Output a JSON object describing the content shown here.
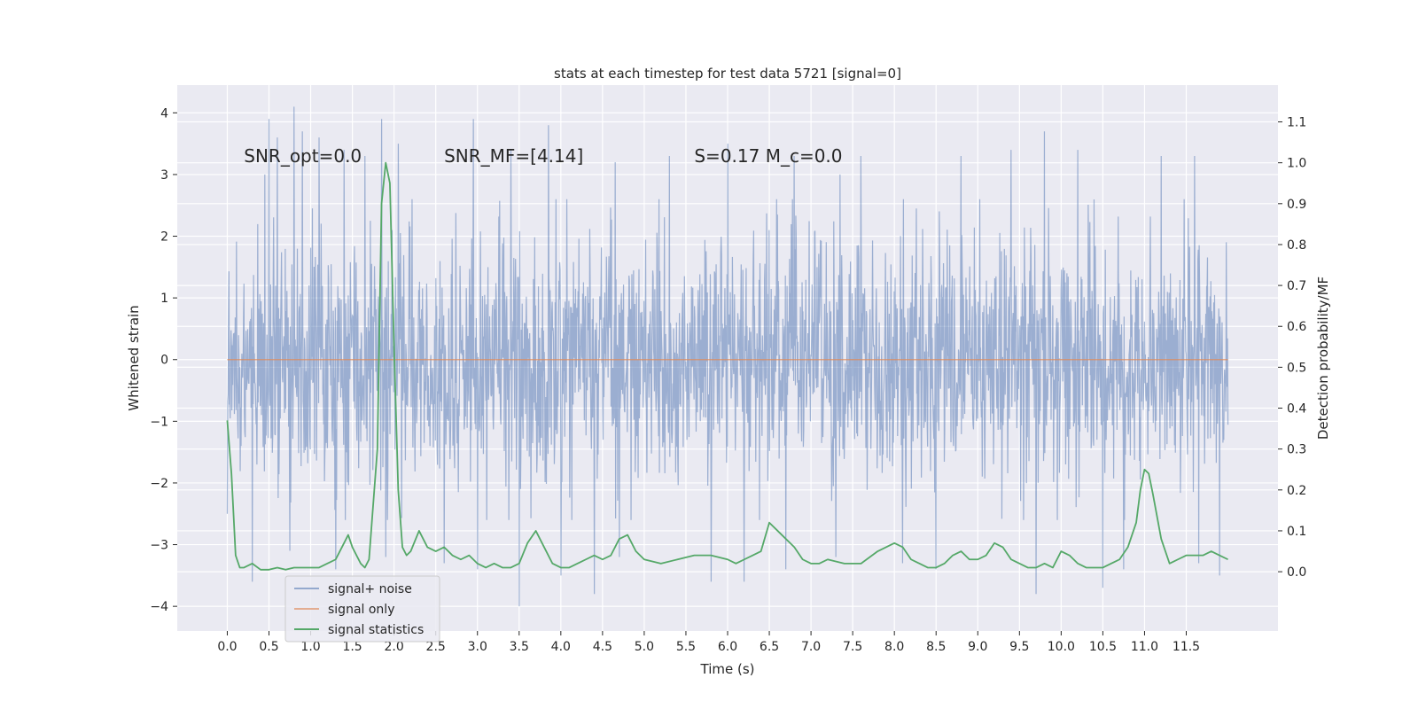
{
  "chart_data": {
    "type": "line",
    "title": "stats at each timestep for test data 5721 [signal=0]",
    "xlabel": "Time (s)",
    "ylabel": "Whitened strain",
    "y2label": "Detection probability/MF",
    "xlim": [
      -0.6,
      12.6
    ],
    "ylim": [
      -4.4,
      4.45
    ],
    "y2lim": [
      -0.145,
      1.19
    ],
    "xticks": [
      0.0,
      0.5,
      1.0,
      1.5,
      2.0,
      2.5,
      3.0,
      3.5,
      4.0,
      4.5,
      5.0,
      5.5,
      6.0,
      6.5,
      7.0,
      7.5,
      8.0,
      8.5,
      9.0,
      9.5,
      10.0,
      10.5,
      11.0,
      11.5
    ],
    "xtick_labels": [
      "0.0",
      "0.5",
      "1.0",
      "1.5",
      "2.0",
      "2.5",
      "3.0",
      "3.5",
      "4.0",
      "4.5",
      "5.0",
      "5.5",
      "6.0",
      "6.5",
      "7.0",
      "7.5",
      "8.0",
      "8.5",
      "9.0",
      "9.5",
      "10.0",
      "10.5",
      "11.0",
      "11.5"
    ],
    "yticks": [
      -4,
      -3,
      -2,
      -1,
      0,
      1,
      2,
      3,
      4
    ],
    "ytick_labels": [
      "−4",
      "−3",
      "−2",
      "−1",
      "0",
      "1",
      "2",
      "3",
      "4"
    ],
    "y2ticks": [
      0.0,
      0.1,
      0.2,
      0.3,
      0.4,
      0.5,
      0.6,
      0.7,
      0.8,
      0.9,
      1.0,
      1.1
    ],
    "y2tick_labels": [
      "0.0",
      "0.1",
      "0.2",
      "0.3",
      "0.4",
      "0.5",
      "0.6",
      "0.7",
      "0.8",
      "0.9",
      "1.0",
      "1.1"
    ],
    "grid": true,
    "legend_position": "lower-left",
    "annotations": [
      {
        "text": "SNR_opt=0.0",
        "x": 0.2,
        "y": 3.3
      },
      {
        "text": "SNR_MF=[4.14]",
        "x": 2.6,
        "y": 3.3
      },
      {
        "text": "S=0.17   M_c=0.0",
        "x": 5.6,
        "y": 3.3
      }
    ],
    "series": [
      {
        "name": "signal+ noise",
        "axis": "left",
        "color": "#4c72b0",
        "kind": "noise",
        "x_range": [
          0.0,
          12.0
        ],
        "peaks": [
          [
            0.0,
            1.6
          ],
          [
            0.0,
            -2.5
          ],
          [
            0.3,
            2.6
          ],
          [
            0.45,
            3.0
          ],
          [
            0.5,
            3.9
          ],
          [
            0.6,
            3.6
          ],
          [
            0.8,
            4.1
          ],
          [
            0.9,
            3.7
          ],
          [
            1.1,
            3.6
          ],
          [
            1.4,
            3.4
          ],
          [
            1.65,
            3.3
          ],
          [
            1.85,
            3.9
          ],
          [
            2.05,
            3.5
          ],
          [
            2.6,
            3.3
          ],
          [
            2.95,
            3.9
          ],
          [
            3.4,
            3.4
          ],
          [
            3.85,
            3.8
          ],
          [
            4.65,
            3.2
          ],
          [
            5.3,
            3.3
          ],
          [
            6.0,
            3.5
          ],
          [
            6.8,
            3.3
          ],
          [
            7.35,
            3.0
          ],
          [
            7.6,
            3.3
          ],
          [
            8.1,
            3.3
          ],
          [
            8.8,
            3.3
          ],
          [
            9.4,
            3.4
          ],
          [
            9.8,
            3.7
          ],
          [
            10.2,
            3.4
          ],
          [
            10.5,
            3.6
          ],
          [
            11.2,
            3.3
          ],
          [
            11.6,
            3.3
          ],
          [
            0.3,
            -3.6
          ],
          [
            0.75,
            -3.1
          ],
          [
            1.3,
            -3.4
          ],
          [
            1.9,
            -3.2
          ],
          [
            2.6,
            -3.3
          ],
          [
            3.0,
            -3.4
          ],
          [
            3.5,
            -4.0
          ],
          [
            4.0,
            -3.5
          ],
          [
            4.4,
            -3.8
          ],
          [
            4.7,
            -3.2
          ],
          [
            5.8,
            -3.6
          ],
          [
            6.2,
            -3.6
          ],
          [
            6.7,
            -3.4
          ],
          [
            7.3,
            -3.2
          ],
          [
            8.1,
            -3.3
          ],
          [
            8.5,
            -3.4
          ],
          [
            9.7,
            -3.8
          ],
          [
            10.5,
            -3.7
          ],
          [
            10.75,
            -3.4
          ],
          [
            11.9,
            -3.5
          ],
          [
            11.65,
            -3.3
          ]
        ]
      },
      {
        "name": "signal only",
        "axis": "left",
        "color": "#dd8452",
        "x": [
          0.0,
          12.0
        ],
        "y": [
          0.0,
          0.0
        ]
      },
      {
        "name": "signal statistics",
        "axis": "right",
        "color": "#55a868",
        "x": [
          0.0,
          0.05,
          0.1,
          0.15,
          0.2,
          0.3,
          0.4,
          0.5,
          0.6,
          0.7,
          0.8,
          0.9,
          1.0,
          1.1,
          1.2,
          1.3,
          1.4,
          1.45,
          1.5,
          1.6,
          1.65,
          1.7,
          1.8,
          1.85,
          1.9,
          1.95,
          2.0,
          2.05,
          2.1,
          2.15,
          2.2,
          2.3,
          2.4,
          2.5,
          2.6,
          2.7,
          2.8,
          2.9,
          3.0,
          3.1,
          3.2,
          3.3,
          3.4,
          3.5,
          3.6,
          3.7,
          3.8,
          3.9,
          4.0,
          4.1,
          4.2,
          4.3,
          4.4,
          4.5,
          4.6,
          4.7,
          4.8,
          4.9,
          5.0,
          5.2,
          5.4,
          5.6,
          5.8,
          6.0,
          6.1,
          6.2,
          6.3,
          6.4,
          6.5,
          6.6,
          6.7,
          6.8,
          6.9,
          7.0,
          7.1,
          7.2,
          7.4,
          7.6,
          7.8,
          7.9,
          8.0,
          8.1,
          8.2,
          8.3,
          8.4,
          8.5,
          8.6,
          8.7,
          8.8,
          8.9,
          9.0,
          9.1,
          9.2,
          9.3,
          9.4,
          9.5,
          9.6,
          9.7,
          9.8,
          9.9,
          10.0,
          10.1,
          10.2,
          10.3,
          10.4,
          10.5,
          10.6,
          10.7,
          10.8,
          10.9,
          10.95,
          11.0,
          11.05,
          11.1,
          11.2,
          11.3,
          11.4,
          11.5,
          11.6,
          11.7,
          11.8,
          11.9,
          12.0
        ],
        "y": [
          0.37,
          0.24,
          0.04,
          0.01,
          0.01,
          0.02,
          0.005,
          0.005,
          0.01,
          0.005,
          0.01,
          0.01,
          0.01,
          0.01,
          0.02,
          0.03,
          0.07,
          0.09,
          0.06,
          0.02,
          0.01,
          0.03,
          0.3,
          0.9,
          1.0,
          0.95,
          0.55,
          0.2,
          0.06,
          0.04,
          0.05,
          0.1,
          0.06,
          0.05,
          0.06,
          0.04,
          0.03,
          0.04,
          0.02,
          0.01,
          0.02,
          0.01,
          0.01,
          0.02,
          0.07,
          0.1,
          0.06,
          0.02,
          0.01,
          0.01,
          0.02,
          0.03,
          0.04,
          0.03,
          0.04,
          0.08,
          0.09,
          0.05,
          0.03,
          0.02,
          0.03,
          0.04,
          0.04,
          0.03,
          0.02,
          0.03,
          0.04,
          0.05,
          0.12,
          0.1,
          0.08,
          0.06,
          0.03,
          0.02,
          0.02,
          0.03,
          0.02,
          0.02,
          0.05,
          0.06,
          0.07,
          0.06,
          0.03,
          0.02,
          0.01,
          0.01,
          0.02,
          0.04,
          0.05,
          0.03,
          0.03,
          0.04,
          0.07,
          0.06,
          0.03,
          0.02,
          0.01,
          0.01,
          0.02,
          0.01,
          0.05,
          0.04,
          0.02,
          0.01,
          0.01,
          0.01,
          0.02,
          0.03,
          0.06,
          0.12,
          0.2,
          0.25,
          0.24,
          0.19,
          0.08,
          0.02,
          0.03,
          0.04,
          0.04,
          0.04,
          0.05,
          0.04,
          0.03
        ]
      }
    ]
  }
}
